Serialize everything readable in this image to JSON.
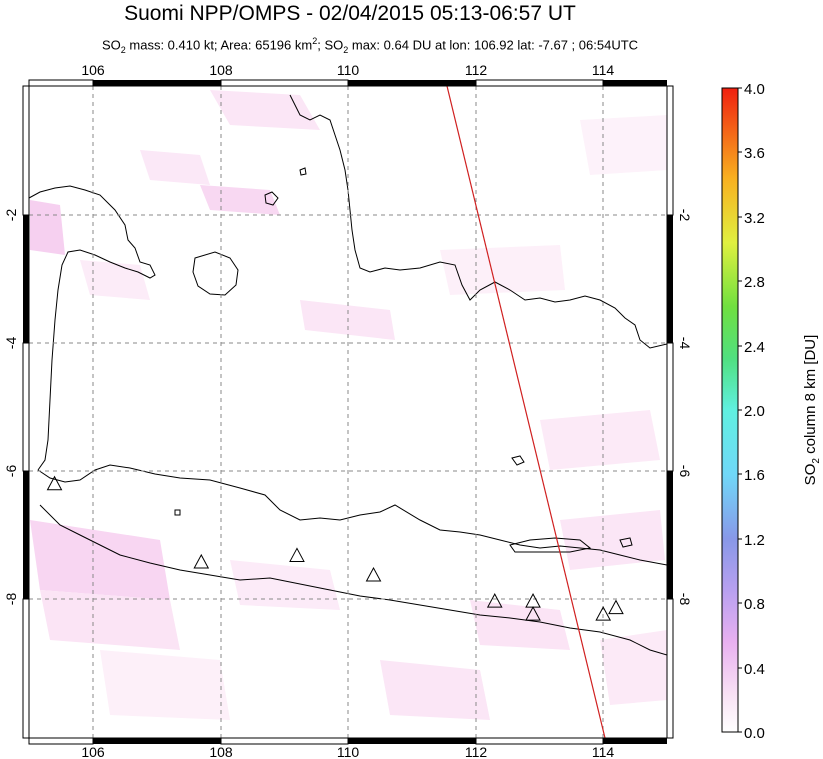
{
  "title": "Suomi NPP/OMPS - 02/04/2015 05:13-06:57 UT",
  "subtitle": {
    "mass_prefix": "SO",
    "mass_sub": "2",
    "mass_text": " mass: 0.410 kt; Area: 65196 km",
    "area_sup": "2",
    "max_text": "; SO",
    "max_sub": "2",
    "max_rest": " max: 0.64 DU at lon: 106.92 lat: -7.67 ; 06:54UTC"
  },
  "map": {
    "lon_ticks": [
      "106",
      "108",
      "110",
      "112",
      "114"
    ],
    "lat_ticks_left": [
      "-2",
      "-4",
      "-6",
      "-8"
    ],
    "lat_ticks_right": [
      "-2",
      "-4",
      "-6",
      "-8"
    ],
    "lon_range": [
      105,
      115
    ],
    "lat_range": [
      -10,
      0
    ],
    "volcano_icon": "triangle-icon",
    "volcanoes": [
      {
        "lon": 105.4,
        "lat": -6.1
      },
      {
        "lon": 107.7,
        "lat": -7.3
      },
      {
        "lon": 109.2,
        "lat": -7.2
      },
      {
        "lon": 110.4,
        "lat": -7.5
      },
      {
        "lon": 112.3,
        "lat": -7.9
      },
      {
        "lon": 112.9,
        "lat": -7.9
      },
      {
        "lon": 112.9,
        "lat": -8.1
      },
      {
        "lon": 114.0,
        "lat": -8.1
      },
      {
        "lon": 114.2,
        "lat": -8.0
      }
    ],
    "orbit_track_color": "#d02020"
  },
  "colorbar": {
    "label_prefix": "SO",
    "label_sub": "2",
    "label_rest": " column 8 km [DU]",
    "ticks": [
      "4.0",
      "3.6",
      "3.2",
      "2.8",
      "2.4",
      "2.0",
      "1.6",
      "1.2",
      "0.8",
      "0.4",
      "0.0"
    ],
    "colors": [
      "#ffffff",
      "#f5c8f0",
      "#d8a0f0",
      "#9090e8",
      "#70c0f8",
      "#70f8f8",
      "#60f0a0",
      "#50e050",
      "#c0f040",
      "#f8f040",
      "#f8a020",
      "#f04010"
    ]
  }
}
